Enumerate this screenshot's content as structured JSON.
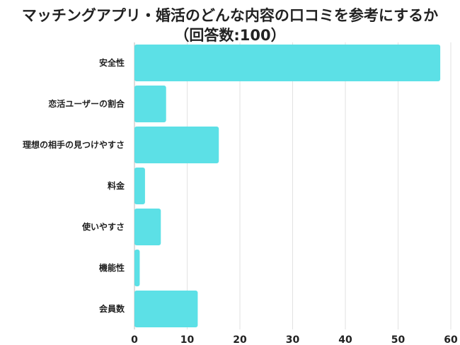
{
  "chart_data": {
    "type": "bar",
    "orientation": "horizontal",
    "title": "マッチングアプリ・婚活のどんな内容の口コミを参考にするか",
    "subtitle": "（回答数:100）",
    "categories": [
      "安全性",
      "恋活ユーザーの割合",
      "理想の相手の見つけやすさ",
      "料金",
      "使いやすさ",
      "機能性",
      "会員数"
    ],
    "values": [
      58,
      6,
      16,
      2,
      5,
      1,
      12
    ],
    "xlim": [
      0,
      60
    ],
    "xticks": [
      0,
      10,
      20,
      30,
      40,
      50,
      60
    ],
    "grid": true,
    "bar_color": "#5ce0e6",
    "xlabel": "",
    "ylabel": ""
  }
}
